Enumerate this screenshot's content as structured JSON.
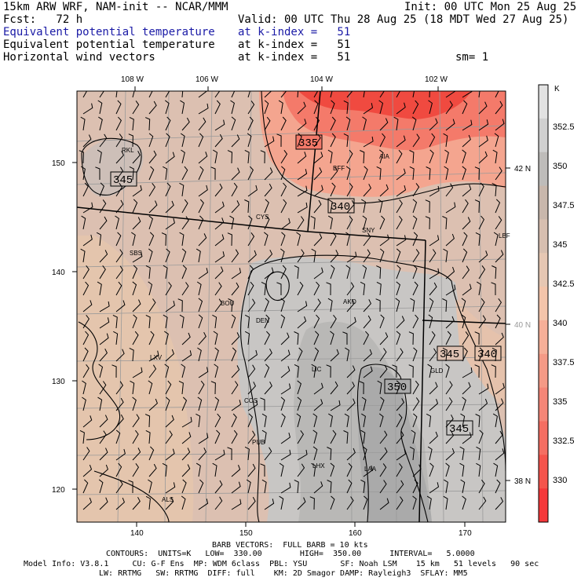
{
  "header": {
    "model_title": "15km ARW WRF, NAM-init -- NCAR/MMM",
    "init_time": "Init: 00 UTC Mon 25 Aug 25",
    "forecast_hour": "Fcst:   72 h",
    "valid_time": "Valid: 00 UTC Thu 28 Aug 25 (18 MDT Wed 27 Aug 25)",
    "fields": [
      {
        "name": "Equivalent potential temperature",
        "level": "at k-index =   51"
      },
      {
        "name": "Equivalent potential temperature",
        "level": "at k-index =   51"
      },
      {
        "name": "Horizontal wind vectors",
        "level": "at k-index =   51"
      }
    ],
    "smoothing": "sm= 1"
  },
  "map": {
    "longitude_labels": [
      "108 W",
      "106 W",
      "104 W",
      "102 W"
    ],
    "latitude_labels": [
      "42 N",
      "40 N",
      "38 N"
    ],
    "grid_y_labels": [
      "150",
      "140",
      "130",
      "120"
    ],
    "grid_x_labels": [
      "140",
      "150",
      "160",
      "170"
    ],
    "station_labels": [
      "RKL",
      "BFF",
      "AIA",
      "CYS",
      "SNY",
      "LBF",
      "SBS",
      "BOU",
      "DEN",
      "AKO",
      "LXV",
      "LIC",
      "GLD",
      "COS",
      "PUB",
      "LHX",
      "LAA",
      "ALS"
    ],
    "contour_labels": [
      "335",
      "345",
      "340",
      "345",
      "350",
      "340",
      "345"
    ],
    "colors": {
      "background_fill": "#dcc0b1",
      "high_fill": "#c8c6c4",
      "ridge_fill": "#aaaaaa",
      "low_fill": "#ee8878",
      "lowest_fill": "#ff3333"
    }
  },
  "colorbar": {
    "unit": "K",
    "labels": [
      "352.5",
      "350",
      "347.5",
      "345",
      "342.5",
      "340",
      "337.5",
      "335",
      "332.5",
      "330"
    ],
    "colors": [
      "#e2e2e2",
      "#d0d0d0",
      "#bebcba",
      "#c8b7ac",
      "#d7bfb0",
      "#e6c7b3",
      "#f3c4aa",
      "#f6af98",
      "#f59a86",
      "#f58677",
      "#f56e62",
      "#f5544c",
      "#f5383a"
    ]
  },
  "footer": {
    "barb_note": "BARB VECTORS:  FULL BARB = 10 kts",
    "contour_note": "CONTOURS:  UNITS=K   LOW=  330.00        HIGH=  350.00      INTERVAL=   5.0000",
    "model_info": "Model Info: V3.8.1     CU: G-F Ens  MP: WDM 6class  PBL: YSU       SF: Noah LSM    15 km   51 levels   90 sec",
    "model_info_2": "LW: RRTMG   SW: RRTMG  DIFF: full    KM: 2D Smagor DAMP: Rayleigh3  SFLAY: MM5"
  }
}
